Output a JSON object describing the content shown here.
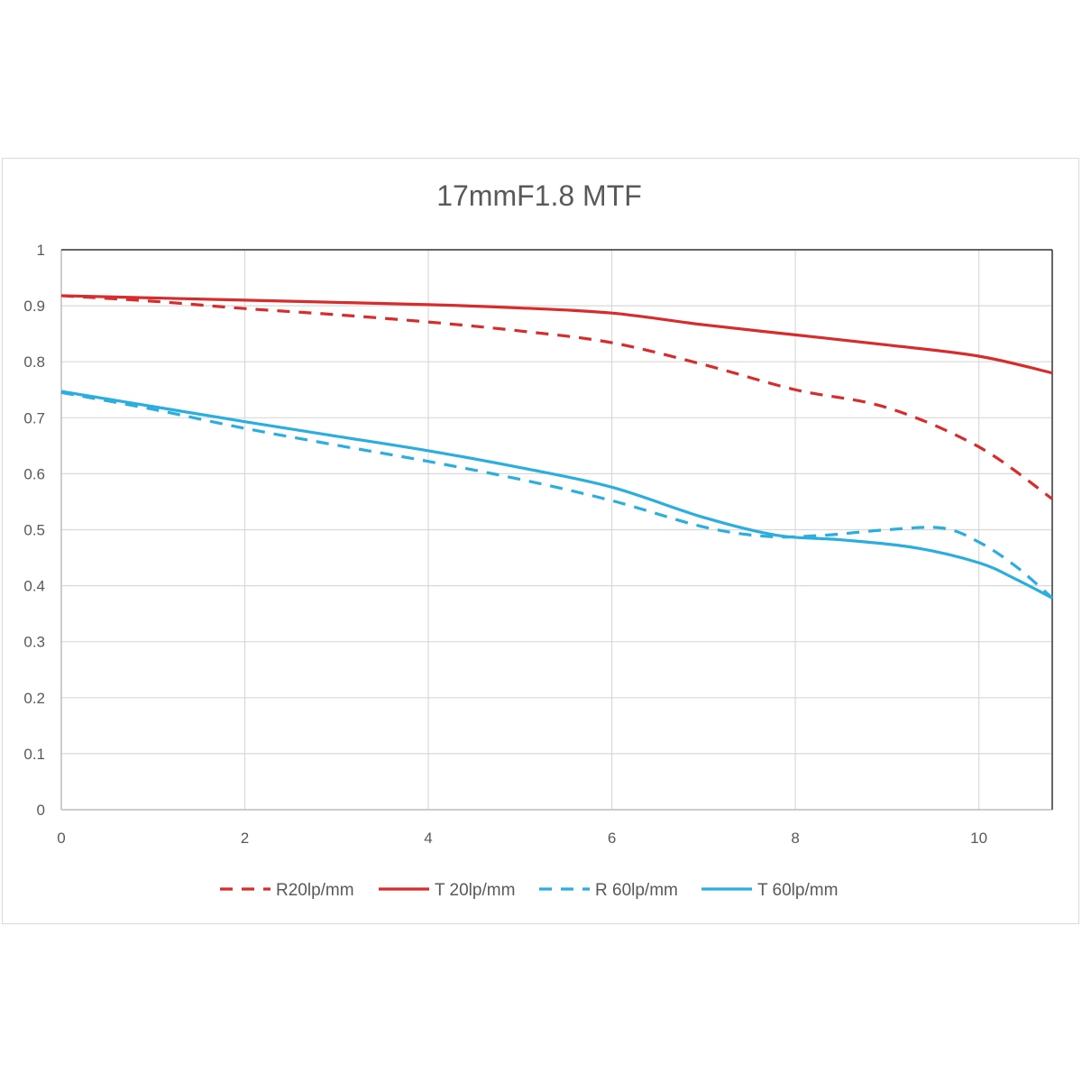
{
  "chart_data": {
    "type": "line",
    "title": "17mmF1.8  MTF",
    "xlabel": "",
    "ylabel": "",
    "xlim": [
      0,
      10.8
    ],
    "ylim": [
      0,
      1
    ],
    "grid": true,
    "legend_placement": "bottom",
    "x_ticks": [
      "0",
      "2",
      "4",
      "6",
      "8",
      "10"
    ],
    "y_ticks": [
      "0",
      "0.1",
      "0.2",
      "0.3",
      "0.4",
      "0.5",
      "0.6",
      "0.7",
      "0.8",
      "0.9",
      "1"
    ],
    "series": [
      {
        "name": "R20lp/mm",
        "color": "#d92b2b",
        "dashed": true,
        "x": [
          0,
          1,
          2,
          3,
          4,
          5,
          6,
          7,
          8,
          9,
          10,
          10.8
        ],
        "y": [
          0.918,
          0.908,
          0.895,
          0.884,
          0.871,
          0.855,
          0.834,
          0.795,
          0.75,
          0.718,
          0.648,
          0.555
        ]
      },
      {
        "name": "T 20lp/mm",
        "color": "#d92b2b",
        "dashed": false,
        "x": [
          0,
          2,
          4,
          5,
          6,
          7,
          8,
          9,
          10,
          10.8
        ],
        "y": [
          0.918,
          0.91,
          0.902,
          0.896,
          0.887,
          0.866,
          0.848,
          0.83,
          0.81,
          0.78
        ]
      },
      {
        "name": "R 60lp/mm",
        "color": "#2aaee0",
        "dashed": true,
        "x": [
          0,
          1,
          2,
          3,
          4,
          5,
          6,
          7,
          7.7,
          8.3,
          9,
          9.6,
          10,
          10.4,
          10.8
        ],
        "y": [
          0.745,
          0.715,
          0.681,
          0.651,
          0.622,
          0.59,
          0.552,
          0.505,
          0.488,
          0.49,
          0.5,
          0.503,
          0.478,
          0.435,
          0.378
        ]
      },
      {
        "name": "T 60lp/mm",
        "color": "#2aaee0",
        "dashed": false,
        "x": [
          0,
          1,
          2,
          3,
          4,
          5,
          6,
          7,
          7.8,
          8.5,
          9.3,
          10,
          10.4,
          10.8
        ],
        "y": [
          0.747,
          0.72,
          0.693,
          0.667,
          0.641,
          0.611,
          0.576,
          0.522,
          0.49,
          0.482,
          0.468,
          0.441,
          0.412,
          0.378
        ]
      }
    ]
  }
}
